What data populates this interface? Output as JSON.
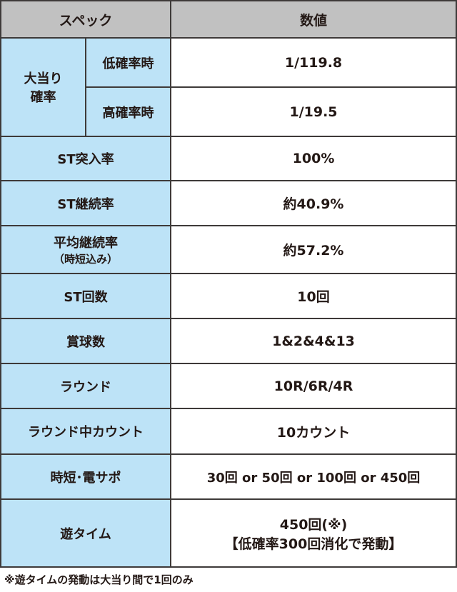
{
  "header": {
    "spec": "スペック",
    "value": "数値"
  },
  "jackpot_prob": {
    "label_line1": "大当り",
    "label_line2": "確率",
    "low_label": "低確率時",
    "low_value": "1/119.8",
    "high_label": "高確率時",
    "high_value": "1/19.5"
  },
  "rows": [
    {
      "label": "ST突入率",
      "value": "100%"
    },
    {
      "label": "ST継続率",
      "value": "約40.9%"
    },
    {
      "label": "平均継続率",
      "sublabel": "（時短込み）",
      "value": "約57.2%"
    },
    {
      "label": "ST回数",
      "value": "10回"
    },
    {
      "label": "賞球数",
      "value": "1&2&4&13"
    },
    {
      "label": "ラウンド",
      "value": "10R/6R/4R"
    },
    {
      "label": "ラウンド中カウント",
      "value": "10カウント"
    },
    {
      "label": "時短･電サポ",
      "value": "30回 or 50回 or 100回 or 450回"
    },
    {
      "label": "遊タイム",
      "value": "450回(※)",
      "value2": "【低確率300回消化で発動】"
    }
  ],
  "footnote": "※遊タイムの発動は大当り間で1回のみ"
}
